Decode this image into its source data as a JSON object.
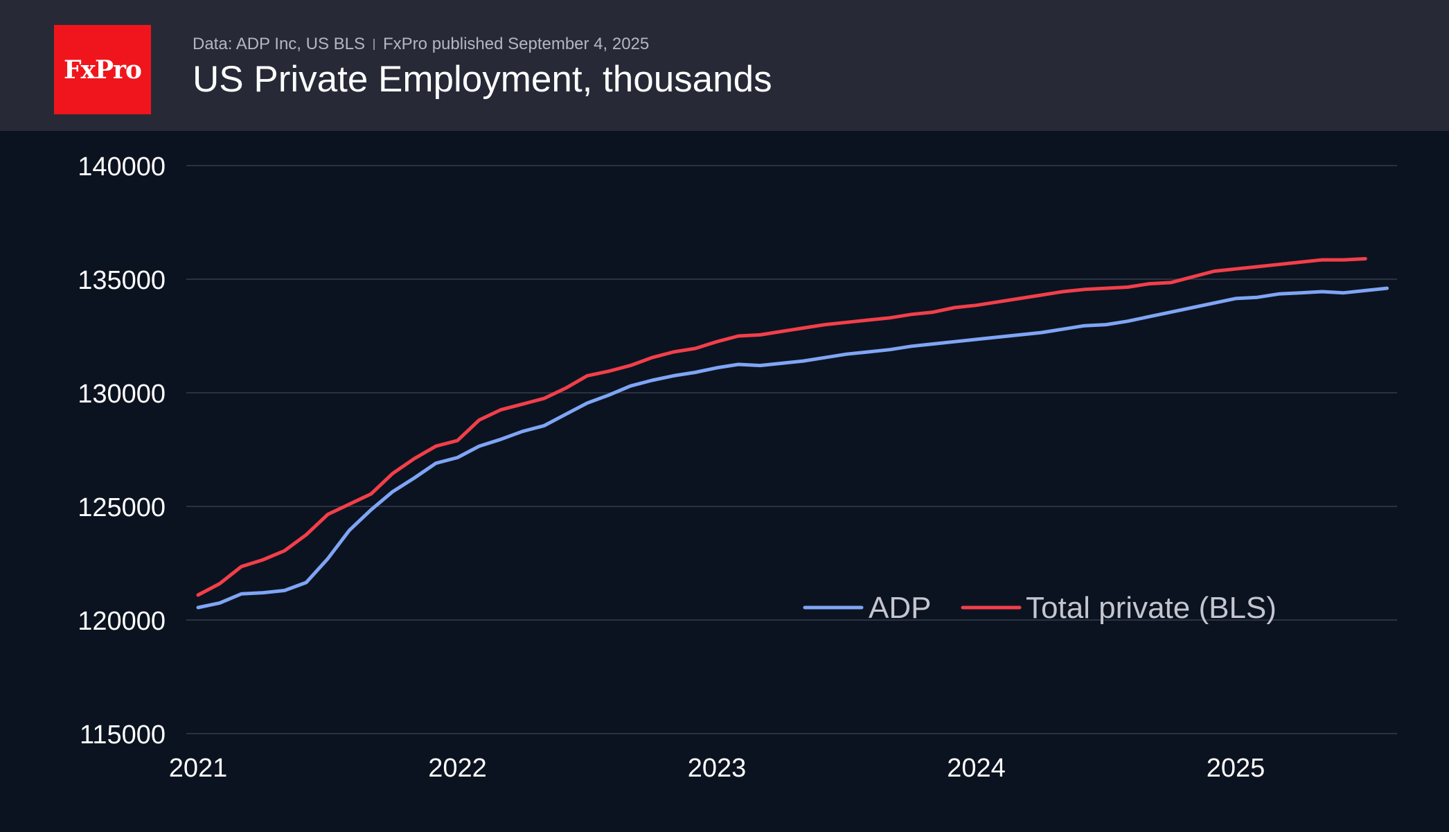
{
  "header": {
    "logo_text": "FxPro",
    "source": "Data: ADP Inc, US BLS",
    "publisher": "FxPro published September 4, 2025",
    "title": "US Private Employment, thousands"
  },
  "colors": {
    "background": "#0c1320",
    "header_background": "#272a36",
    "logo_background": "#f0151c",
    "adp": "#7fa5f5",
    "bls": "#f23f4a",
    "grid": "#2a3140",
    "tick_text": "#ffffff",
    "legend_text": "#c3c6cf"
  },
  "chart_data": {
    "type": "line",
    "title": "US Private Employment, thousands",
    "xlabel": "",
    "ylabel": "",
    "ylim": [
      115000,
      140000
    ],
    "yticks": [
      115000,
      120000,
      125000,
      130000,
      135000,
      140000
    ],
    "xlim": [
      2021.0,
      2025.667
    ],
    "xticks": [
      {
        "value": 2021,
        "label": "2021"
      },
      {
        "value": 2022,
        "label": "2022"
      },
      {
        "value": 2023,
        "label": "2023"
      },
      {
        "value": 2024,
        "label": "2024"
      },
      {
        "value": 2025,
        "label": "2025"
      }
    ],
    "grid": true,
    "legend_position": "bottom-right",
    "x_start": "2021-01",
    "series": [
      {
        "name": "ADP",
        "color": "#7fa5f5",
        "values": [
          120550,
          120750,
          121150,
          121200,
          121300,
          121650,
          122700,
          123950,
          124850,
          125650,
          126250,
          126900,
          127150,
          127650,
          127950,
          128300,
          128550,
          129050,
          129550,
          129900,
          130300,
          130550,
          130750,
          130900,
          131100,
          131250,
          131200,
          131300,
          131400,
          131550,
          131700,
          131800,
          131900,
          132050,
          132150,
          132250,
          132350,
          132450,
          132550,
          132650,
          132800,
          132950,
          133000,
          133150,
          133350,
          133550,
          133750,
          133950,
          134150,
          134200,
          134350,
          134400,
          134450,
          134400,
          134500,
          134600
        ]
      },
      {
        "name": "Total private (BLS)",
        "color": "#f23f4a",
        "values": [
          121100,
          121600,
          122350,
          122650,
          123050,
          123750,
          124650,
          125100,
          125550,
          126450,
          127100,
          127650,
          127900,
          128800,
          129250,
          129500,
          129750,
          130200,
          130750,
          130950,
          131200,
          131550,
          131800,
          131950,
          132250,
          132500,
          132550,
          132700,
          132850,
          133000,
          133100,
          133200,
          133300,
          133450,
          133550,
          133750,
          133850,
          134000,
          134150,
          134300,
          134450,
          134550,
          134600,
          134650,
          134800,
          134850,
          135100,
          135350,
          135450,
          135550,
          135650,
          135750,
          135850,
          135850,
          135900
        ]
      }
    ]
  }
}
